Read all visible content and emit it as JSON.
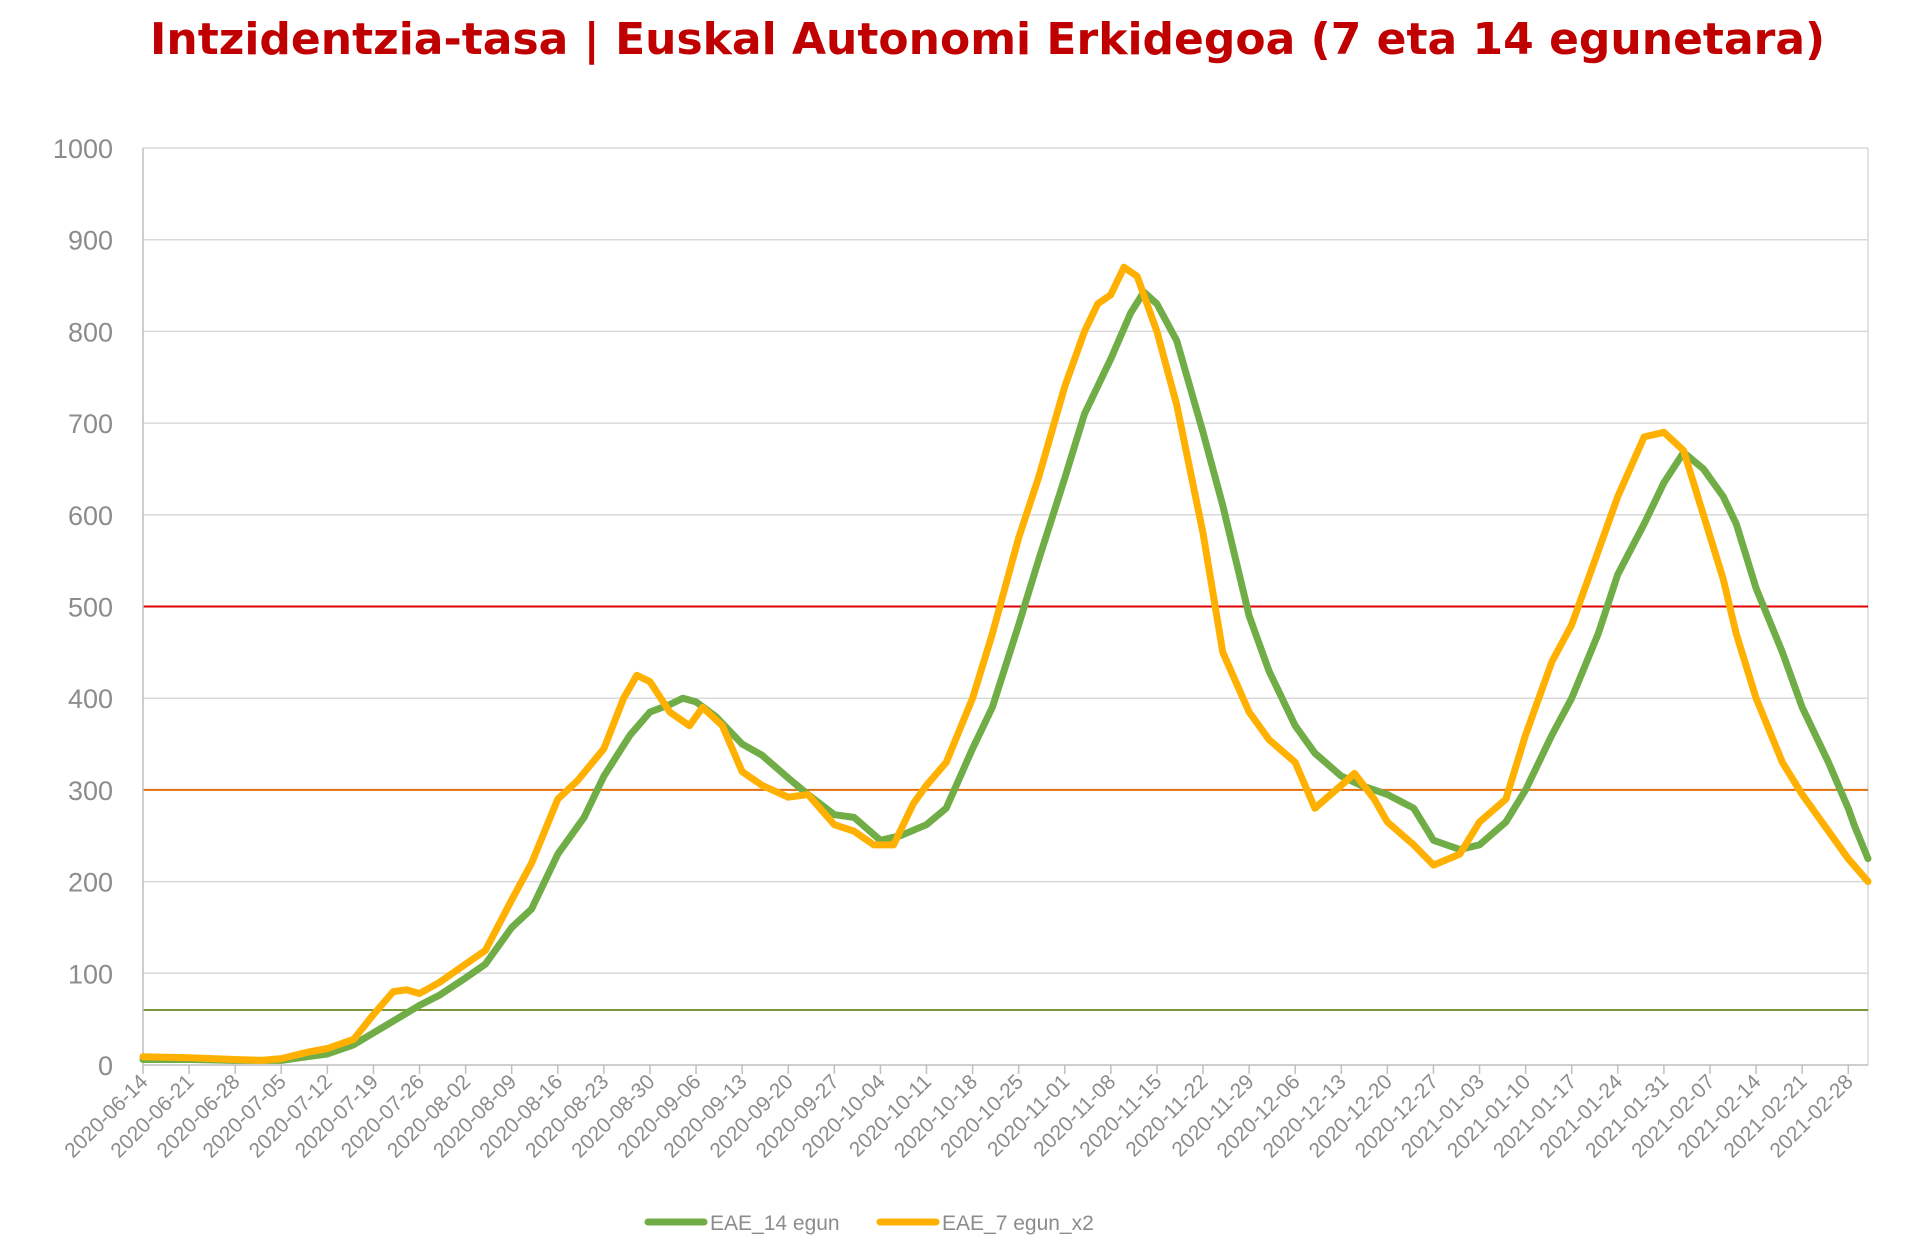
{
  "chart_data": {
    "type": "line",
    "title": "Intzidentzia-tasa | Euskal Autonomi Erkidegoa (7 eta 14 egunetara)",
    "xlabel": "",
    "ylabel": "",
    "ylim": [
      0,
      1000
    ],
    "yticks": [
      0,
      100,
      200,
      300,
      400,
      500,
      600,
      700,
      800,
      900,
      1000
    ],
    "x_start": "2020-06-14",
    "x_end": "2021-03-03",
    "x_ticks": [
      "2020-06-14",
      "2020-06-21",
      "2020-06-28",
      "2020-07-05",
      "2020-07-12",
      "2020-07-19",
      "2020-07-26",
      "2020-08-02",
      "2020-08-09",
      "2020-08-16",
      "2020-08-23",
      "2020-08-30",
      "2020-09-06",
      "2020-09-13",
      "2020-09-20",
      "2020-09-27",
      "2020-10-04",
      "2020-10-11",
      "2020-10-18",
      "2020-10-25",
      "2020-11-01",
      "2020-11-08",
      "2020-11-15",
      "2020-11-22",
      "2020-11-29",
      "2020-12-06",
      "2020-12-13",
      "2020-12-20",
      "2020-12-27",
      "2021-01-03",
      "2021-01-10",
      "2021-01-17",
      "2021-01-24",
      "2021-01-31",
      "2021-02-07",
      "2021-02-14",
      "2021-02-21",
      "2021-02-28"
    ],
    "grid": true,
    "legend_position": "bottom",
    "reference_lines": [
      {
        "value": 500,
        "color": "#e00000"
      },
      {
        "value": 300,
        "color": "#e07010"
      },
      {
        "value": 60,
        "color": "#7a9a3a"
      }
    ],
    "series": [
      {
        "name": "EAE_14 egun",
        "color": "#70ad47",
        "points": [
          [
            "2020-06-14",
            6
          ],
          [
            "2020-06-21",
            6
          ],
          [
            "2020-06-28",
            5
          ],
          [
            "2020-07-05",
            5
          ],
          [
            "2020-07-09",
            9
          ],
          [
            "2020-07-12",
            12
          ],
          [
            "2020-07-16",
            22
          ],
          [
            "2020-07-19",
            35
          ],
          [
            "2020-07-26",
            65
          ],
          [
            "2020-07-29",
            76
          ],
          [
            "2020-08-02",
            95
          ],
          [
            "2020-08-05",
            110
          ],
          [
            "2020-08-09",
            150
          ],
          [
            "2020-08-12",
            170
          ],
          [
            "2020-08-16",
            230
          ],
          [
            "2020-08-20",
            270
          ],
          [
            "2020-08-23",
            315
          ],
          [
            "2020-08-27",
            360
          ],
          [
            "2020-08-30",
            385
          ],
          [
            "2020-09-02",
            393
          ],
          [
            "2020-09-04",
            400
          ],
          [
            "2020-09-06",
            396
          ],
          [
            "2020-09-09",
            380
          ],
          [
            "2020-09-13",
            350
          ],
          [
            "2020-09-16",
            338
          ],
          [
            "2020-09-20",
            313
          ],
          [
            "2020-09-23",
            295
          ],
          [
            "2020-09-27",
            273
          ],
          [
            "2020-09-30",
            270
          ],
          [
            "2020-10-04",
            245
          ],
          [
            "2020-10-07",
            250
          ],
          [
            "2020-10-11",
            262
          ],
          [
            "2020-10-14",
            280
          ],
          [
            "2020-10-18",
            345
          ],
          [
            "2020-10-21",
            390
          ],
          [
            "2020-10-25",
            480
          ],
          [
            "2020-10-28",
            550
          ],
          [
            "2020-11-01",
            640
          ],
          [
            "2020-11-04",
            710
          ],
          [
            "2020-11-08",
            770
          ],
          [
            "2020-11-11",
            820
          ],
          [
            "2020-11-13",
            843
          ],
          [
            "2020-11-15",
            830
          ],
          [
            "2020-11-18",
            790
          ],
          [
            "2020-11-22",
            690
          ],
          [
            "2020-11-25",
            610
          ],
          [
            "2020-11-29",
            490
          ],
          [
            "2020-12-02",
            430
          ],
          [
            "2020-12-06",
            370
          ],
          [
            "2020-12-09",
            340
          ],
          [
            "2020-12-13",
            315
          ],
          [
            "2020-12-16",
            305
          ],
          [
            "2020-12-20",
            295
          ],
          [
            "2020-12-24",
            280
          ],
          [
            "2020-12-27",
            245
          ],
          [
            "2020-12-31",
            235
          ],
          [
            "2021-01-03",
            240
          ],
          [
            "2021-01-07",
            265
          ],
          [
            "2021-01-10",
            300
          ],
          [
            "2021-01-14",
            360
          ],
          [
            "2021-01-17",
            400
          ],
          [
            "2021-01-21",
            470
          ],
          [
            "2021-01-24",
            535
          ],
          [
            "2021-01-28",
            590
          ],
          [
            "2021-01-31",
            635
          ],
          [
            "2021-02-03",
            668
          ],
          [
            "2021-02-06",
            650
          ],
          [
            "2021-02-09",
            620
          ],
          [
            "2021-02-11",
            590
          ],
          [
            "2021-02-14",
            520
          ],
          [
            "2021-02-18",
            450
          ],
          [
            "2021-02-21",
            390
          ],
          [
            "2021-02-25",
            330
          ],
          [
            "2021-02-28",
            280
          ],
          [
            "2021-03-01",
            260
          ],
          [
            "2021-03-03",
            225
          ]
        ]
      },
      {
        "name": "EAE_7 egun_x2",
        "color": "#ffb000",
        "points": [
          [
            "2020-06-14",
            9
          ],
          [
            "2020-06-21",
            8
          ],
          [
            "2020-06-28",
            6
          ],
          [
            "2020-07-02",
            5
          ],
          [
            "2020-07-05",
            7
          ],
          [
            "2020-07-09",
            14
          ],
          [
            "2020-07-12",
            18
          ],
          [
            "2020-07-16",
            28
          ],
          [
            "2020-07-19",
            55
          ],
          [
            "2020-07-22",
            80
          ],
          [
            "2020-07-24",
            82
          ],
          [
            "2020-07-26",
            78
          ],
          [
            "2020-07-29",
            90
          ],
          [
            "2020-08-02",
            110
          ],
          [
            "2020-08-05",
            125
          ],
          [
            "2020-08-09",
            180
          ],
          [
            "2020-08-12",
            220
          ],
          [
            "2020-08-16",
            290
          ],
          [
            "2020-08-19",
            310
          ],
          [
            "2020-08-23",
            345
          ],
          [
            "2020-08-26",
            400
          ],
          [
            "2020-08-28",
            425
          ],
          [
            "2020-08-30",
            418
          ],
          [
            "2020-09-02",
            385
          ],
          [
            "2020-09-05",
            370
          ],
          [
            "2020-09-07",
            390
          ],
          [
            "2020-09-10",
            370
          ],
          [
            "2020-09-13",
            320
          ],
          [
            "2020-09-16",
            305
          ],
          [
            "2020-09-20",
            292
          ],
          [
            "2020-09-23",
            295
          ],
          [
            "2020-09-27",
            262
          ],
          [
            "2020-09-30",
            255
          ],
          [
            "2020-10-03",
            240
          ],
          [
            "2020-10-06",
            240
          ],
          [
            "2020-10-09",
            285
          ],
          [
            "2020-10-11",
            305
          ],
          [
            "2020-10-14",
            330
          ],
          [
            "2020-10-18",
            400
          ],
          [
            "2020-10-21",
            470
          ],
          [
            "2020-10-25",
            575
          ],
          [
            "2020-10-28",
            640
          ],
          [
            "2020-11-01",
            740
          ],
          [
            "2020-11-04",
            800
          ],
          [
            "2020-11-06",
            830
          ],
          [
            "2020-11-08",
            840
          ],
          [
            "2020-11-10",
            870
          ],
          [
            "2020-11-12",
            860
          ],
          [
            "2020-11-15",
            800
          ],
          [
            "2020-11-18",
            720
          ],
          [
            "2020-11-22",
            580
          ],
          [
            "2020-11-25",
            450
          ],
          [
            "2020-11-29",
            385
          ],
          [
            "2020-12-02",
            355
          ],
          [
            "2020-12-06",
            330
          ],
          [
            "2020-12-09",
            280
          ],
          [
            "2020-12-13",
            305
          ],
          [
            "2020-12-15",
            318
          ],
          [
            "2020-12-18",
            290
          ],
          [
            "2020-12-20",
            265
          ],
          [
            "2020-12-24",
            240
          ],
          [
            "2020-12-27",
            218
          ],
          [
            "2020-12-31",
            230
          ],
          [
            "2021-01-03",
            265
          ],
          [
            "2021-01-07",
            290
          ],
          [
            "2021-01-10",
            360
          ],
          [
            "2021-01-14",
            440
          ],
          [
            "2021-01-17",
            480
          ],
          [
            "2021-01-21",
            560
          ],
          [
            "2021-01-24",
            620
          ],
          [
            "2021-01-28",
            685
          ],
          [
            "2021-01-31",
            690
          ],
          [
            "2021-02-03",
            670
          ],
          [
            "2021-02-06",
            600
          ],
          [
            "2021-02-09",
            530
          ],
          [
            "2021-02-11",
            470
          ],
          [
            "2021-02-14",
            400
          ],
          [
            "2021-02-18",
            330
          ],
          [
            "2021-02-21",
            295
          ],
          [
            "2021-02-25",
            255
          ],
          [
            "2021-02-28",
            225
          ],
          [
            "2021-03-03",
            200
          ]
        ]
      }
    ]
  }
}
